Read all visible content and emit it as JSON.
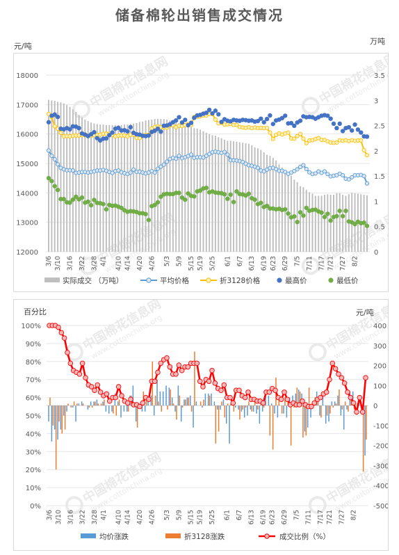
{
  "title": "储备棉轮出销售成交情况",
  "colors": {
    "volume": "#bfbfbf",
    "avg_price": "#5b9bd5",
    "avg_price_fill": "#dbe7f4",
    "price3128": "#ffc000",
    "price3128_fill": "#fff0c2",
    "max_price": "#4472c4",
    "min_price": "#70ad47",
    "avg_change": "#5b9bd5",
    "change3128": "#ed7d31",
    "ratio": "#ff0000",
    "ratio_fill": "#f4b6b6",
    "axis_text": "#595959",
    "grid": "#e6e6e6",
    "watermark": "#e8e8e8"
  },
  "chart_data": [
    {
      "type": "bar+line+scatter",
      "y_left_unit": "元/吨",
      "y_right_unit": "万吨",
      "ylim_left": [
        12000,
        18000
      ],
      "yticks_left": [
        "12000",
        "13000",
        "14000",
        "15000",
        "16000",
        "17000",
        "18000"
      ],
      "ylim_right": [
        0,
        3.5
      ],
      "yticks_right": [
        "0",
        "0.5",
        "1",
        "1.5",
        "2",
        "2.5",
        "3",
        "3.5"
      ],
      "xtick_labels": [
        "3/6",
        "3/10",
        "3/16",
        "3/22",
        "3/28",
        "4/1",
        "4/10",
        "4/14",
        "4/20",
        "4/26",
        "5/3",
        "5/9",
        "5/15",
        "5/19",
        "5/25",
        "6/1",
        "6/7",
        "6/13",
        "6/19",
        "6/23",
        "6/29",
        "7/5",
        "7/11",
        "7/17",
        "7/21",
        "7/27",
        "8/2"
      ],
      "xtick_positions": [
        0,
        3,
        7,
        11,
        15,
        18,
        23,
        26,
        30,
        34,
        39,
        43,
        47,
        50,
        54,
        59,
        63,
        67,
        71,
        74,
        78,
        82,
        86,
        90,
        93,
        97,
        101
      ],
      "n_days": 106,
      "volume_wan_t": [
        3.01,
        3.0,
        2.99,
        2.97,
        2.96,
        2.94,
        2.91,
        2.87,
        2.82,
        2.77,
        2.71,
        2.66,
        2.62,
        2.59,
        2.56,
        2.54,
        2.53,
        2.52,
        2.52,
        2.51,
        2.51,
        2.51,
        2.51,
        2.51,
        2.51,
        2.52,
        2.52,
        2.53,
        2.54,
        2.55,
        2.57,
        2.58,
        2.6,
        2.61,
        2.62,
        2.63,
        2.63,
        2.63,
        2.63,
        2.62,
        2.6,
        2.58,
        2.57,
        2.55,
        2.53,
        2.51,
        2.49,
        2.47,
        2.45,
        2.44,
        2.42,
        2.39,
        2.36,
        2.33,
        2.31,
        2.3,
        2.27,
        2.25,
        2.22,
        2.2,
        2.2,
        2.19,
        2.18,
        2.17,
        2.16,
        2.15,
        2.14,
        2.11,
        2.07,
        2.05,
        2.02,
        1.97,
        1.92,
        1.9,
        1.86,
        1.81,
        1.73,
        1.67,
        1.59,
        1.55,
        1.51,
        1.43,
        1.38,
        1.3,
        1.28,
        1.23,
        1.18,
        1.15,
        1.11,
        1.11,
        1.11,
        1.13,
        1.14,
        1.13,
        1.13,
        1.16,
        1.16,
        1.13,
        1.11,
        1.14,
        1.17,
        1.16,
        1.15,
        1.14,
        1.13,
        1.12
      ],
      "avg_price": [
        15440,
        15260,
        15140,
        14970,
        14850,
        14800,
        14770,
        14770,
        14760,
        14680,
        14690,
        14710,
        14710,
        14690,
        14710,
        14730,
        14760,
        14760,
        14780,
        14750,
        14710,
        14680,
        14740,
        14760,
        14700,
        14670,
        14640,
        14690,
        14790,
        14710,
        14720,
        14690,
        14660,
        14690,
        14740,
        14690,
        14820,
        14890,
        14960,
        15060,
        15150,
        15190,
        15160,
        15260,
        15180,
        15210,
        15250,
        15300,
        15190,
        15210,
        15210,
        15200,
        15260,
        15320,
        15380,
        15400,
        15380,
        15360,
        15390,
        15300,
        15110,
        15110,
        15100,
        15080,
        15050,
        14990,
        14940,
        14920,
        14890,
        14850,
        14760,
        14730,
        14790,
        14840,
        14850,
        14810,
        14750,
        14750,
        14710,
        14650,
        14690,
        14740,
        14800,
        14880,
        14940,
        14810,
        14700,
        14640,
        14660,
        14730,
        14680,
        14730,
        14640,
        14560,
        14580,
        14600,
        14650,
        14600,
        14480,
        14460,
        14530,
        14600,
        14600,
        14610,
        14570,
        14320
      ],
      "price3128": [
        16680,
        16580,
        16260,
        16180,
        16040,
        15920,
        15930,
        15920,
        15940,
        15950,
        15950,
        15960,
        15960,
        15950,
        15940,
        15960,
        15970,
        15980,
        16010,
        16010,
        16010,
        15970,
        15920,
        15950,
        15950,
        15950,
        15920,
        15970,
        15980,
        15870,
        15860,
        15930,
        15970,
        15970,
        16190,
        16240,
        16260,
        16230,
        16230,
        16210,
        16290,
        16300,
        16230,
        16280,
        16270,
        16300,
        16340,
        16310,
        16580,
        16580,
        16600,
        16630,
        16630,
        16680,
        16680,
        16490,
        16360,
        16380,
        16320,
        16330,
        16340,
        16310,
        16310,
        16240,
        16220,
        16210,
        16230,
        16200,
        16220,
        16200,
        16210,
        16200,
        16200,
        16050,
        15830,
        15970,
        16020,
        15980,
        16020,
        16050,
        15850,
        15840,
        15930,
        16000,
        15840,
        15690,
        15780,
        15790,
        15830,
        15860,
        15800,
        15800,
        15750,
        15710,
        15700,
        15710,
        15790,
        15770,
        15790,
        15760,
        15790,
        15770,
        15780,
        15780,
        15450,
        15280
      ],
      "max_price": [
        16400,
        16620,
        16660,
        16580,
        16180,
        16160,
        16200,
        16160,
        16260,
        16250,
        16200,
        16020,
        15980,
        15930,
        15990,
        16060,
        15860,
        15780,
        15840,
        15850,
        15960,
        16050,
        16180,
        16210,
        16120,
        16130,
        16090,
        16230,
        16040,
        15990,
        15980,
        15940,
        15930,
        15950,
        16070,
        16110,
        16180,
        16080,
        16280,
        16290,
        16330,
        16400,
        16460,
        16570,
        16390,
        16480,
        16300,
        16380,
        16550,
        16630,
        16650,
        16690,
        16720,
        16820,
        16700,
        16790,
        16670,
        16410,
        16500,
        16450,
        16430,
        16480,
        16460,
        16450,
        16480,
        16470,
        16450,
        16460,
        16420,
        16440,
        16520,
        16400,
        16510,
        16630,
        16340,
        16460,
        16490,
        16540,
        16620,
        16360,
        16370,
        16280,
        16390,
        16450,
        16600,
        16570,
        16580,
        16570,
        16520,
        16570,
        16620,
        16640,
        16620,
        16520,
        16350,
        16200,
        16350,
        16100,
        16200,
        16230,
        16120,
        16320,
        16150,
        16050,
        15920,
        15910
      ],
      "min_price": [
        14500,
        14400,
        14230,
        14100,
        13790,
        13790,
        13680,
        13670,
        13770,
        13870,
        13780,
        13840,
        13670,
        13700,
        13580,
        13760,
        13660,
        13650,
        13620,
        13440,
        13590,
        13560,
        13570,
        13530,
        13490,
        13410,
        13360,
        13380,
        13370,
        13350,
        13310,
        13310,
        13280,
        13080,
        13550,
        13590,
        13680,
        13870,
        13950,
        13970,
        13960,
        13960,
        14000,
        14000,
        13840,
        13770,
        13980,
        13900,
        13880,
        14050,
        14080,
        14150,
        14170,
        14020,
        14050,
        14010,
        14000,
        13990,
        13950,
        13800,
        13940,
        13690,
        14050,
        13960,
        13950,
        13910,
        13970,
        13820,
        13770,
        13620,
        13660,
        13520,
        13560,
        13470,
        13470,
        13440,
        13460,
        13420,
        13440,
        13300,
        13170,
        13200,
        13010,
        13340,
        13230,
        13490,
        13390,
        13420,
        13430,
        13370,
        13330,
        13180,
        13290,
        13060,
        13180,
        13210,
        13390,
        13210,
        13390,
        13030,
        13000,
        12940,
        13020,
        12970,
        12990,
        12880
      ],
      "legend": [
        "实际成交 （万吨）",
        "平均价格",
        "折3128价格",
        "最高价",
        "最低价"
      ]
    },
    {
      "type": "bar+line",
      "y_left_unit": "百分比",
      "y_right_unit": "元/吨",
      "ylim_left": [
        0,
        100
      ],
      "yticks_left": [
        "0%",
        "10%",
        "20%",
        "30%",
        "40%",
        "50%",
        "60%",
        "70%",
        "80%",
        "90%",
        "100%"
      ],
      "ylim_right": [
        -500,
        400
      ],
      "yticks_right": [
        "-500",
        "-400",
        "-300",
        "-200",
        "-100",
        "0",
        "100",
        "200",
        "300",
        "400"
      ],
      "xtick_labels": [
        "3/6",
        "3/10",
        "3/16",
        "3/22",
        "3/28",
        "4/1",
        "4/10",
        "4/14",
        "4/20",
        "4/26",
        "5/3",
        "5/9",
        "5/15",
        "5/19",
        "5/25",
        "6/1",
        "6/7",
        "6/13",
        "6/19",
        "6/23",
        "6/29",
        "7/5",
        "7/11",
        "7/17",
        "7/21",
        "7/27",
        "8/2"
      ],
      "xtick_positions": [
        0,
        3,
        7,
        11,
        15,
        18,
        23,
        26,
        30,
        34,
        39,
        43,
        47,
        50,
        54,
        59,
        63,
        67,
        71,
        74,
        78,
        82,
        86,
        90,
        93,
        97,
        101
      ],
      "avg_change": [
        -80,
        -180,
        -120,
        -170,
        -120,
        -50,
        -30,
        0,
        -10,
        -80,
        10,
        20,
        0,
        -20,
        20,
        20,
        30,
        0,
        20,
        -30,
        -40,
        -30,
        60,
        20,
        -60,
        -30,
        -30,
        50,
        100,
        -80,
        10,
        -30,
        -30,
        30,
        50,
        -50,
        130,
        70,
        70,
        100,
        90,
        40,
        -30,
        100,
        -80,
        30,
        40,
        50,
        -110,
        20,
        0,
        -10,
        60,
        60,
        60,
        20,
        -20,
        -20,
        30,
        -90,
        -190,
        0,
        -10,
        -20,
        -30,
        -60,
        -50,
        -20,
        -30,
        -40,
        -90,
        -30,
        60,
        50,
        10,
        -40,
        -60,
        0,
        -40,
        -60,
        40,
        50,
        60,
        80,
        60,
        -130,
        -110,
        -60,
        20,
        70,
        -50,
        50,
        -90,
        -80,
        20,
        20,
        50,
        -50,
        -120,
        -20,
        70,
        70,
        0,
        10,
        -40,
        -250
      ],
      "change3128": [
        40,
        -100,
        -320,
        -80,
        -140,
        -120,
        10,
        -10,
        20,
        10,
        0,
        10,
        0,
        -10,
        -10,
        20,
        10,
        10,
        30,
        0,
        0,
        -40,
        -50,
        30,
        0,
        0,
        -30,
        50,
        10,
        -110,
        -10,
        70,
        40,
        0,
        220,
        50,
        20,
        -30,
        0,
        -20,
        80,
        10,
        -70,
        50,
        -10,
        30,
        40,
        -30,
        270,
        0,
        20,
        30,
        0,
        50,
        0,
        -190,
        -130,
        20,
        -60,
        10,
        10,
        -30,
        0,
        -70,
        -20,
        -10,
        20,
        -30,
        20,
        -20,
        10,
        -10,
        0,
        -150,
        -220,
        140,
        50,
        -40,
        40,
        30,
        -200,
        -10,
        90,
        70,
        -160,
        -150,
        90,
        10,
        40,
        30,
        -60,
        0,
        -50,
        -40,
        -10,
        10,
        80,
        -20,
        20,
        -30,
        30,
        -20,
        10,
        0,
        -330,
        -170
      ],
      "ratio_pct": [
        100,
        100,
        100,
        99,
        96,
        93,
        85,
        79,
        75,
        74,
        73,
        79,
        71,
        67,
        66,
        64,
        67,
        63,
        61,
        62,
        58,
        60,
        60,
        66,
        61,
        58,
        57,
        59,
        56,
        56,
        55,
        57,
        60,
        59,
        69,
        69,
        74,
        79,
        81,
        82,
        77,
        73,
        73,
        78,
        75,
        77,
        77,
        79,
        79,
        79,
        69,
        66,
        70,
        69,
        75,
        68,
        65,
        64,
        67,
        60,
        60,
        57,
        64,
        64,
        61,
        60,
        63,
        59,
        59,
        58,
        58,
        57,
        63,
        63,
        65,
        64,
        60,
        59,
        63,
        59,
        56,
        57,
        56,
        56,
        58,
        56,
        55,
        55,
        57,
        59,
        60,
        62,
        63,
        70,
        79,
        76,
        73,
        71,
        68,
        63,
        60,
        57,
        52,
        60,
        52,
        71
      ],
      "legend": [
        "均价涨跌",
        "折3128涨跌",
        "成交比例（%）"
      ]
    }
  ],
  "watermark": {
    "brand": "中国棉花信息网",
    "url": "www.cottonchina.org"
  }
}
